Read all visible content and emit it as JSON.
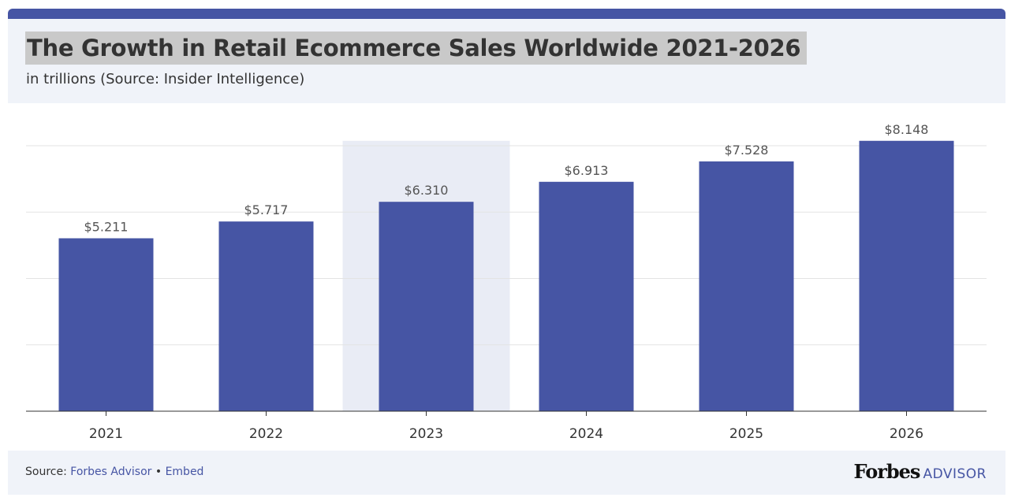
{
  "chart_data": {
    "type": "bar",
    "title": "The Growth in Retail Ecommerce Sales Worldwide 2021-2026",
    "subtitle": "in trillions (Source: Insider Intelligence)",
    "categories": [
      "2021",
      "2022",
      "2023",
      "2024",
      "2025",
      "2026"
    ],
    "values": [
      5.211,
      5.717,
      6.31,
      6.913,
      7.528,
      8.148
    ],
    "data_labels": [
      "$5.211",
      "$5.717",
      "$6.310",
      "$6.913",
      "$7.528",
      "$8.148"
    ],
    "highlighted_category": "2023",
    "ylim": [
      0,
      8
    ],
    "gridlines": [
      2,
      4,
      6,
      8
    ],
    "xlabel": "",
    "ylabel": "",
    "bar_color": "#4655a4",
    "highlight_color": "#e9ecf5"
  },
  "footer": {
    "source_prefix": "Source: ",
    "source_link": "Forbes Advisor",
    "separator": " • ",
    "embed_link": "Embed",
    "logo_brand": "Forbes",
    "logo_suffix": "ADVISOR"
  }
}
